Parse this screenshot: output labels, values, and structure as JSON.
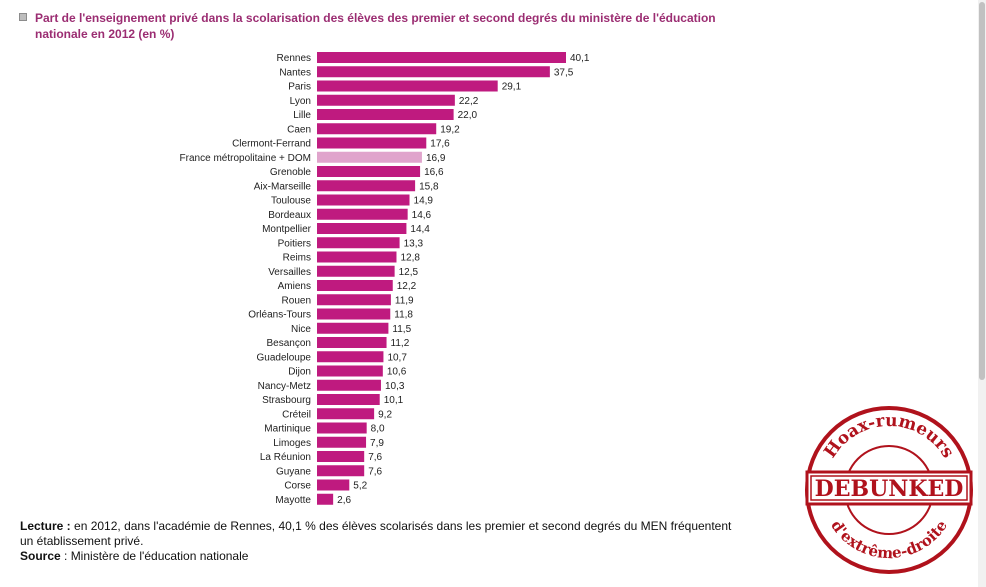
{
  "title_line1": "Part de l'enseignement privé dans la scolarisation des élèves des premier et second degrés du ministère de l'éducation",
  "title_line2": "nationale en 2012 (en %)",
  "chart_data": {
    "type": "bar",
    "orientation": "horizontal",
    "title": "Part de l'enseignement privé dans la scolarisation des élèves des premier et second degrés du ministère de l'éducation nationale en 2012 (en %)",
    "categories": [
      "Rennes",
      "Nantes",
      "Paris",
      "Lyon",
      "Lille",
      "Caen",
      "Clermont-Ferrand",
      "France métropolitaine + DOM",
      "Grenoble",
      "Aix-Marseille",
      "Toulouse",
      "Bordeaux",
      "Montpellier",
      "Poitiers",
      "Reims",
      "Versailles",
      "Amiens",
      "Rouen",
      "Orléans-Tours",
      "Nice",
      "Besançon",
      "Guadeloupe",
      "Dijon",
      "Nancy-Metz",
      "Strasbourg",
      "Créteil",
      "Martinique",
      "Limoges",
      "La Réunion",
      "Guyane",
      "Corse",
      "Mayotte"
    ],
    "values": [
      40.1,
      37.5,
      29.1,
      22.2,
      22.0,
      19.2,
      17.6,
      16.9,
      16.6,
      15.8,
      14.9,
      14.6,
      14.4,
      13.3,
      12.8,
      12.5,
      12.2,
      11.9,
      11.8,
      11.5,
      11.2,
      10.7,
      10.6,
      10.3,
      10.1,
      9.2,
      8.0,
      7.9,
      7.6,
      7.6,
      5.2,
      2.6
    ],
    "value_labels": [
      "40,1",
      "37,5",
      "29,1",
      "22,2",
      "22,0",
      "19,2",
      "17,6",
      "16,9",
      "16,6",
      "15,8",
      "14,9",
      "14,6",
      "14,4",
      "13,3",
      "12,8",
      "12,5",
      "12,2",
      "11,9",
      "11,8",
      "11,5",
      "11,2",
      "10,7",
      "10,6",
      "10,3",
      "10,1",
      "9,2",
      "8,0",
      "7,9",
      "7,6",
      "7,6",
      "5,2",
      "2,6"
    ],
    "highlight_category": "France métropolitaine + DOM",
    "bar_color": "#bf1a7f",
    "highlight_color": "#e0a4cc",
    "xlim": [
      0,
      40.1
    ],
    "grid": false,
    "legend": "none"
  },
  "footer": {
    "lecture_label": "Lecture :",
    "lecture_text": " en 2012, dans l'académie de Rennes, 40,1 % des élèves scolarisés dans les premier et second degrés du MEN fréquentent",
    "lecture_text2": "un établissement privé.",
    "source_label": "Source",
    "source_text": " : Ministère de l'éducation nationale"
  },
  "stamp": {
    "top_text": "Hoax-rumeurs",
    "center_text": "DEBUNKED",
    "bottom_text": "d'extrême-droite",
    "color": "#b0121c"
  }
}
